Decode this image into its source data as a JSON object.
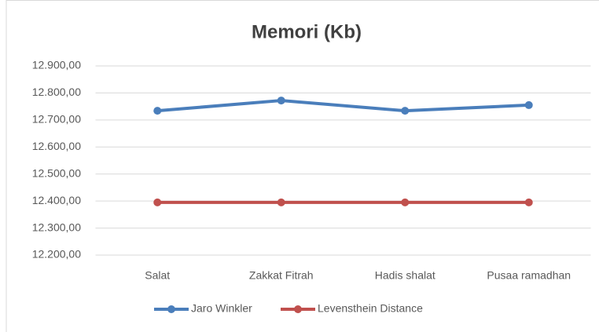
{
  "chart_data": {
    "type": "line",
    "title": "Memori (Kb)",
    "categories": [
      "Salat",
      "Zakkat Fitrah",
      "Hadis shalat",
      "Pusaa ramadhan"
    ],
    "series": [
      {
        "name": "Jaro Winkler",
        "color": "#4a7ebb",
        "values": [
          12734,
          12772,
          12734,
          12755
        ]
      },
      {
        "name": "Levensthein Distance",
        "color": "#c0504d",
        "values": [
          12395,
          12395,
          12395,
          12395
        ]
      }
    ],
    "ylim": [
      12200,
      12900
    ],
    "yticks": [
      {
        "value": 12200,
        "label": "12.200,00"
      },
      {
        "value": 12300,
        "label": "12.300,00"
      },
      {
        "value": 12400,
        "label": "12.400,00"
      },
      {
        "value": 12500,
        "label": "12.500,00"
      },
      {
        "value": 12600,
        "label": "12.600,00"
      },
      {
        "value": 12700,
        "label": "12.700,00"
      },
      {
        "value": 12800,
        "label": "12.800,00"
      },
      {
        "value": 12900,
        "label": "12.900,00"
      }
    ],
    "grid": true,
    "legend": "bottom"
  }
}
